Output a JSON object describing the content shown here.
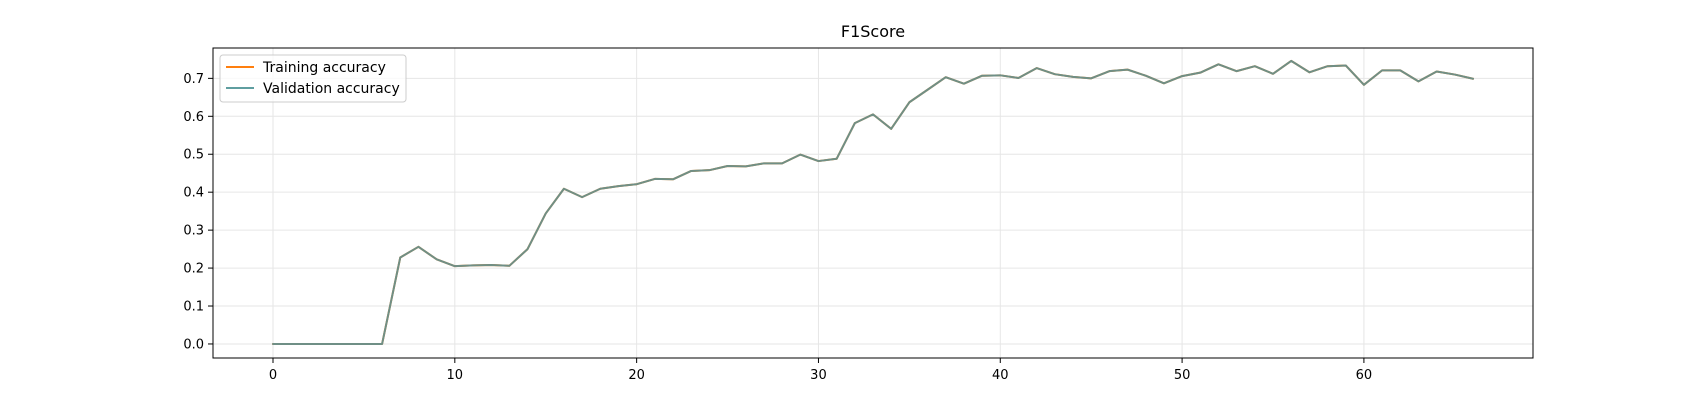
{
  "chart_data": {
    "type": "line",
    "title": "F1Score",
    "xlabel": "",
    "ylabel": "",
    "xlim": [
      -3.3,
      69.3
    ],
    "ylim": [
      -0.037,
      0.78
    ],
    "xticks": [
      0,
      10,
      20,
      30,
      40,
      50,
      60
    ],
    "yticks": [
      0.0,
      0.1,
      0.2,
      0.3,
      0.4,
      0.5,
      0.6,
      0.7
    ],
    "grid": true,
    "legend_position": "top-left",
    "colors": {
      "training": "#ff7f0e",
      "validation": "#5f9ea0",
      "overlap": "#6f8f86",
      "grid": "#e6e6e6",
      "axis": "#000000"
    },
    "x": [
      0,
      1,
      2,
      3,
      4,
      5,
      6,
      7,
      8,
      9,
      10,
      11,
      12,
      13,
      14,
      15,
      16,
      17,
      18,
      19,
      20,
      21,
      22,
      23,
      24,
      25,
      26,
      27,
      28,
      29,
      30,
      31,
      32,
      33,
      34,
      35,
      36,
      37,
      38,
      39,
      40,
      41,
      42,
      43,
      44,
      45,
      46,
      47,
      48,
      49,
      50,
      51,
      52,
      53,
      54,
      55,
      56,
      57,
      58,
      59,
      60,
      61,
      62,
      63,
      64,
      65,
      66
    ],
    "series": [
      {
        "name": "Training accuracy",
        "values": [
          0,
          0,
          0,
          0,
          0,
          0,
          0,
          0.228,
          0.256,
          0.223,
          0.205,
          0.207,
          0.208,
          0.206,
          0.25,
          0.344,
          0.409,
          0.387,
          0.409,
          0.416,
          0.421,
          0.435,
          0.434,
          0.456,
          0.458,
          0.469,
          0.468,
          0.476,
          0.476,
          0.499,
          0.482,
          0.488,
          0.582,
          0.605,
          0.567,
          0.637,
          0.67,
          0.703,
          0.686,
          0.707,
          0.708,
          0.701,
          0.727,
          0.711,
          0.704,
          0.7,
          0.719,
          0.723,
          0.707,
          0.687,
          0.706,
          0.715,
          0.737,
          0.719,
          0.732,
          0.712,
          0.746,
          0.716,
          0.732,
          0.734,
          0.683,
          0.721,
          0.721,
          0.692,
          0.718,
          0.71,
          0.699
        ]
      },
      {
        "name": "Validation accuracy",
        "values": [
          0,
          0,
          0,
          0,
          0,
          0,
          0,
          0.228,
          0.256,
          0.223,
          0.205,
          0.207,
          0.208,
          0.206,
          0.25,
          0.344,
          0.409,
          0.387,
          0.409,
          0.416,
          0.421,
          0.435,
          0.434,
          0.456,
          0.458,
          0.469,
          0.468,
          0.476,
          0.476,
          0.499,
          0.482,
          0.488,
          0.582,
          0.605,
          0.567,
          0.637,
          0.67,
          0.703,
          0.686,
          0.707,
          0.708,
          0.701,
          0.727,
          0.711,
          0.704,
          0.7,
          0.719,
          0.723,
          0.707,
          0.687,
          0.706,
          0.715,
          0.737,
          0.719,
          0.732,
          0.712,
          0.746,
          0.716,
          0.732,
          0.734,
          0.683,
          0.721,
          0.721,
          0.692,
          0.718,
          0.71,
          0.699
        ]
      }
    ]
  }
}
